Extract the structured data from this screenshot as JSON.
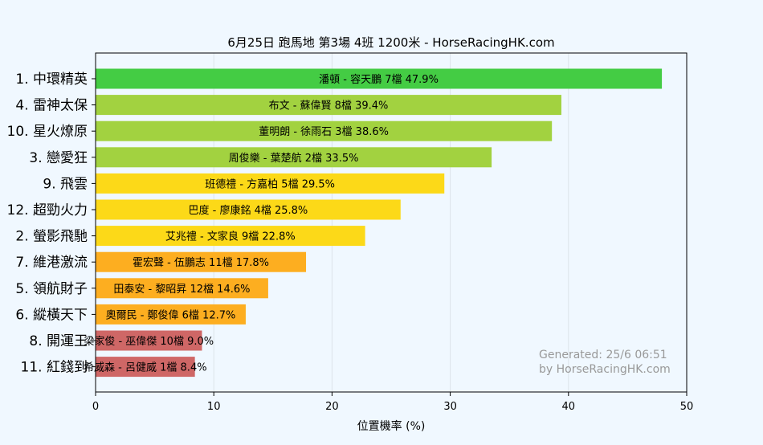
{
  "colors": {
    "background": "#f0f8ff",
    "plot_background": "#f0f8ff",
    "grid": "#dde3ea",
    "bar_green": "#44cc44",
    "bar_lime": "#a2d240",
    "bar_yellow": "#fcd918",
    "bar_orange": "#fdae20",
    "bar_red": "#cf6766",
    "watermark": "#999999"
  },
  "chart_data": {
    "type": "bar",
    "orientation": "horizontal",
    "title": "6月25日  跑馬地  第3場  4班  1200米 - HorseRacingHK.com",
    "xlabel": "位置機率 (%)",
    "ylabel": "",
    "xlim": [
      0,
      50
    ],
    "xticks": [
      0,
      10,
      20,
      30,
      40,
      50
    ],
    "grid": true,
    "categories": [
      "1. 中環精英",
      "4. 雷神太保",
      "10. 星火燎原",
      "3. 戀愛狂",
      "9. 飛雲",
      "12. 超勁火力",
      "2. 螢影飛馳",
      "7. 維港激流",
      "5. 領航財子",
      "6. 縱橫天下",
      "8. 開運王",
      "11. 紅錢到"
    ],
    "values": [
      47.9,
      39.4,
      38.6,
      33.5,
      29.5,
      25.8,
      22.8,
      17.8,
      14.6,
      12.7,
      9.0,
      8.4
    ],
    "bar_labels": [
      "潘頓 - 容天鵬 7檔  47.9%",
      "布文 - 蘇偉賢 8檔  39.4%",
      "董明朗 - 徐雨石 3檔  38.6%",
      "周俊樂 - 葉楚航 2檔  33.5%",
      "班德禮 - 方嘉柏 5檔  29.5%",
      "巴度 - 廖康銘 4檔  25.8%",
      "艾兆禮 - 文家良 9檔  22.8%",
      "霍宏聲 - 伍鵬志 11檔  17.8%",
      "田泰安 - 黎昭昇 12檔  14.6%",
      "奧爾民 - 鄭俊偉 6檔  12.7%",
      "梁家俊 - 巫偉傑 10檔  9.0%",
      "希威森 - 呂健威 1檔  8.4%"
    ],
    "bar_colors": [
      "#44cc44",
      "#a2d240",
      "#a2d240",
      "#a2d240",
      "#fcd918",
      "#fcd918",
      "#fcd918",
      "#fdae20",
      "#fdae20",
      "#fdae20",
      "#cf6766",
      "#cf6766"
    ],
    "watermark": [
      "Generated: 25/6 06:51",
      "by HorseRacingHK.com"
    ]
  }
}
